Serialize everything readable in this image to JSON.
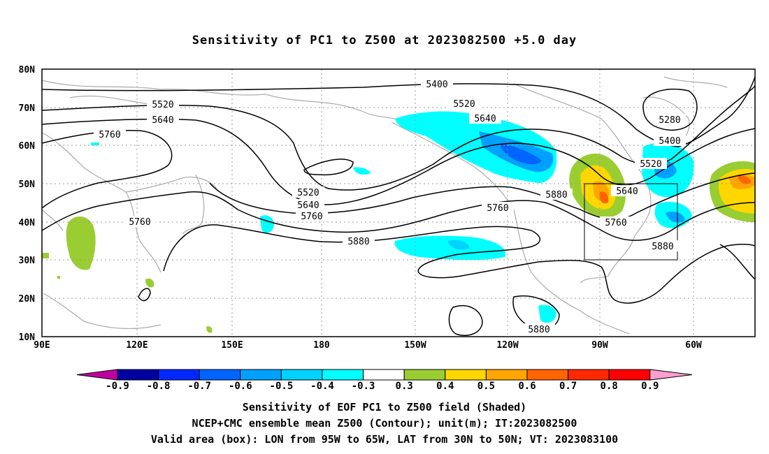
{
  "title": "Sensitivity of PC1 to Z500 at 2023082500 +5.0 day",
  "lat_labels": [
    "80N",
    "70N",
    "60N",
    "50N",
    "40N",
    "30N",
    "20N",
    "10N"
  ],
  "lon_labels": [
    "90E",
    "120E",
    "150E",
    "180",
    "150W",
    "120W",
    "90W",
    "60W"
  ],
  "contour_labels": {
    "c5400": "5400",
    "c5520a": "5520",
    "c5640a": "5640",
    "c5760a": "5760",
    "c5520b": "5520",
    "c5640b": "5640",
    "c5760b": "5760",
    "c5880a": "5880",
    "c5640c": "5640",
    "c5760c": "5760",
    "c5880b": "5880",
    "c5280": "5280",
    "c5400b": "5400",
    "c5520c": "5520",
    "c5640d": "5640",
    "c5760d": "5760",
    "c5880c": "5880",
    "c5880d": "5880",
    "c5760e": "5760",
    "c5520d": "5520"
  },
  "colorbar": {
    "labels": [
      "-0.9",
      "-0.8",
      "-0.7",
      "-0.6",
      "-0.5",
      "-0.4",
      "-0.3",
      "0.3",
      "0.4",
      "0.5",
      "0.6",
      "0.7",
      "0.8",
      "0.9"
    ],
    "colors": [
      "#0000a0",
      "#0028ff",
      "#0064ff",
      "#00a0ff",
      "#00d2ff",
      "#00ffff",
      "#ffffff",
      "#9acd32",
      "#ffd700",
      "#ffa500",
      "#ff6400",
      "#ff2800",
      "#ff0000"
    ],
    "low_end_color": "#c000a0",
    "high_end_color": "#ff9ecf"
  },
  "footer": {
    "line1": "Sensitivity of EOF PC1 to Z500 field (Shaded)",
    "line2": "NCEP+CMC ensemble mean Z500 (Contour); unit(m); IT:2023082500",
    "line3": "Valid area (box): LON from 95W to 65W, LAT from 30N to 50N; VT: 2023083100"
  }
}
